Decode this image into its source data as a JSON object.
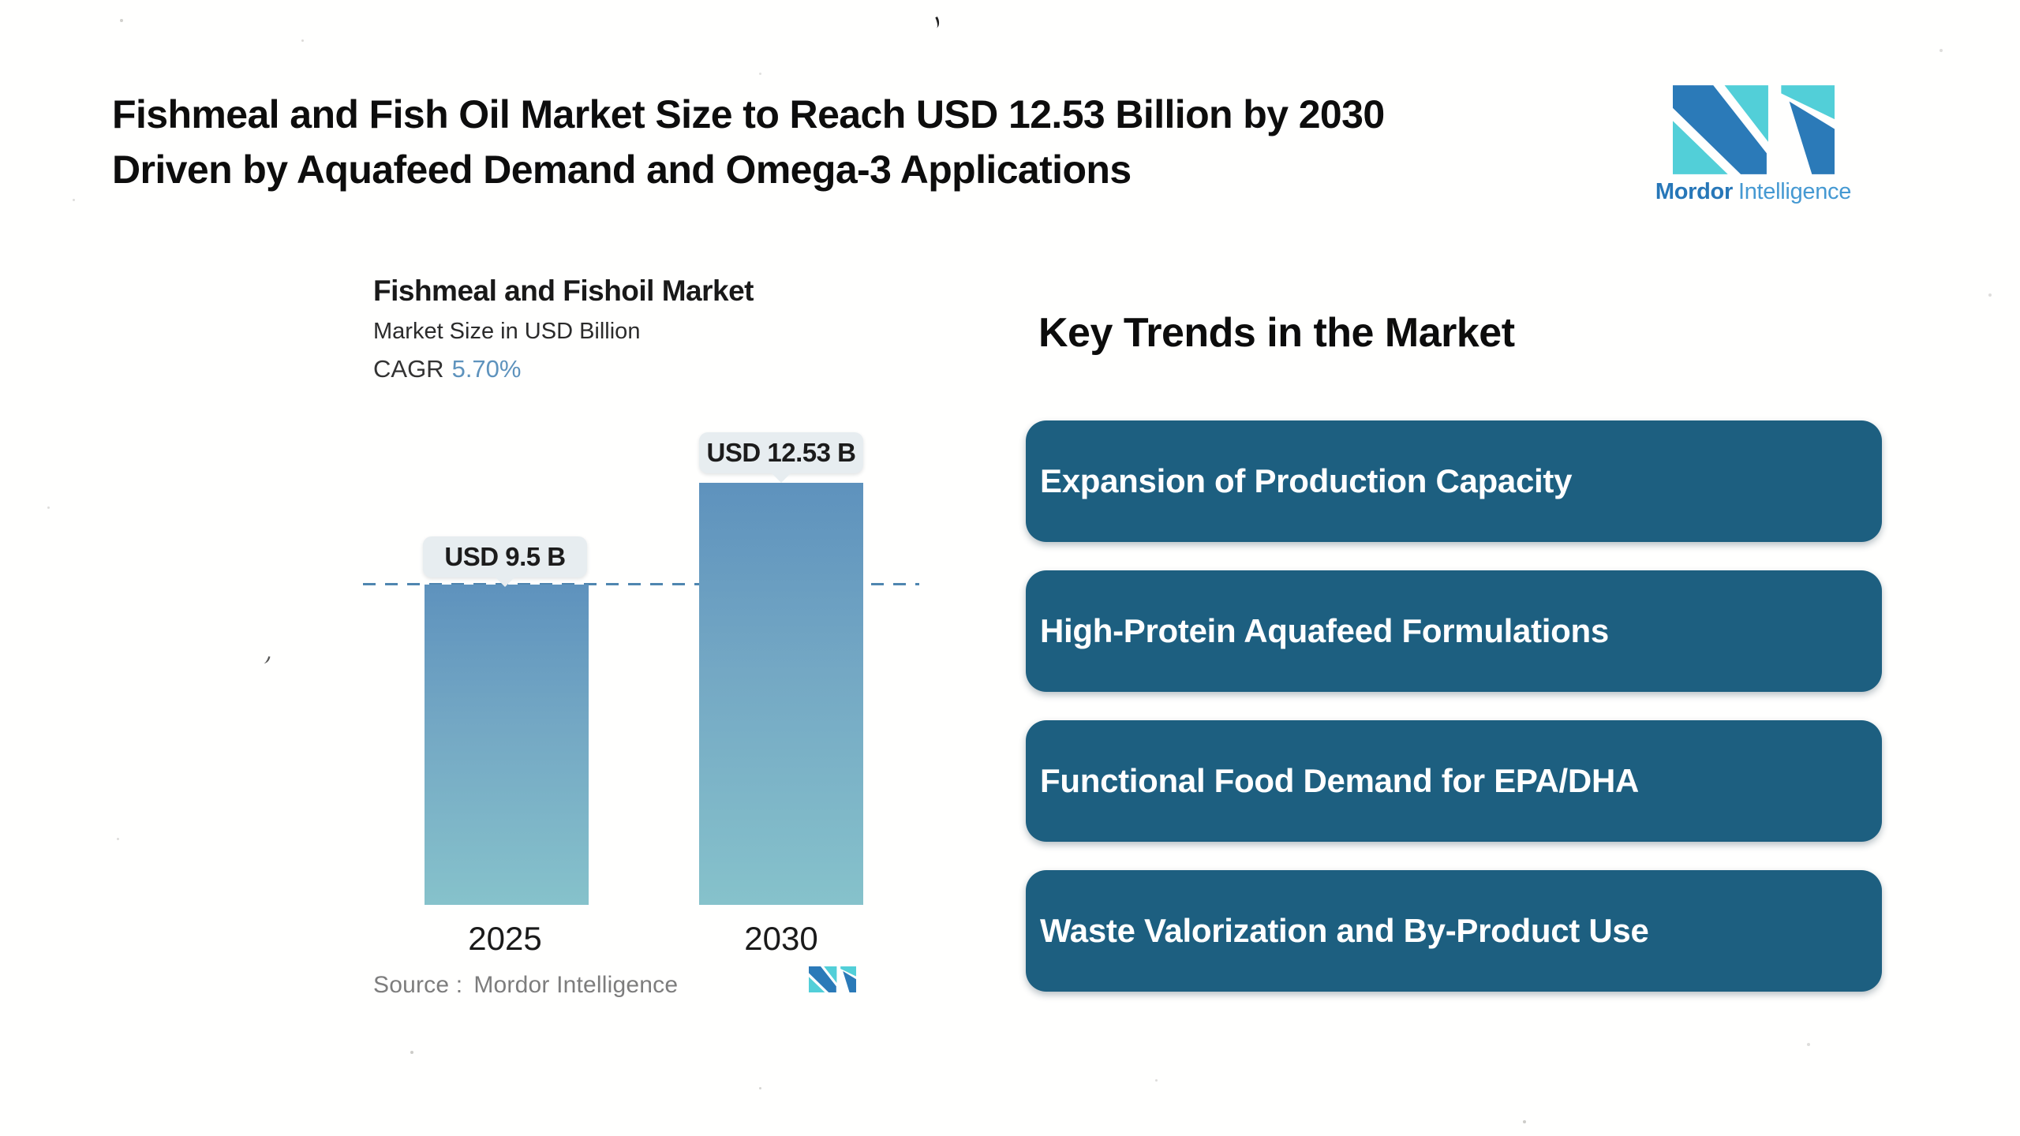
{
  "header": {
    "title_line1": "Fishmeal and Fish Oil Market Size to Reach USD 12.53 Billion by 2030",
    "title_line2": "Driven by Aquafeed Demand and Omega-3 Applications"
  },
  "brand": {
    "name_bold": "Mordor",
    "name_regular": "Intelligence",
    "mark_icon": "mordor-intelligence-mi-mark",
    "colors": {
      "blue": "#2b7ab8",
      "teal": "#52cfd8"
    }
  },
  "chart_data": {
    "type": "bar",
    "title": "Fishmeal and Fishoil Market",
    "subtitle": "Market Size in USD Billion",
    "cagr_label": "CAGR",
    "cagr_value": "5.70%",
    "categories": [
      "2025",
      "2030"
    ],
    "values": [
      9.5,
      12.53
    ],
    "value_labels": [
      "USD 9.5 B",
      "USD 12.53 B"
    ],
    "unit": "USD Billion",
    "ylim": [
      0,
      12.53
    ],
    "reference_line": 9.5,
    "grid": "off",
    "legend": "none",
    "bar_gradient_top": "#5e92bd",
    "bar_gradient_bottom": "#86c2cb",
    "reference_line_color": "#4f86b0",
    "label_bubble_bg": "#e7edf0",
    "source_label": "Source :",
    "source_value": "Mordor Intelligence"
  },
  "trends": {
    "heading": "Key Trends in the Market",
    "card_bg": "#1d5f80",
    "items": [
      "Expansion of Production Capacity",
      "High-Protein Aquafeed Formulations",
      "Functional Food Demand for EPA/DHA",
      "Waste Valorization and By-Product Use"
    ]
  }
}
